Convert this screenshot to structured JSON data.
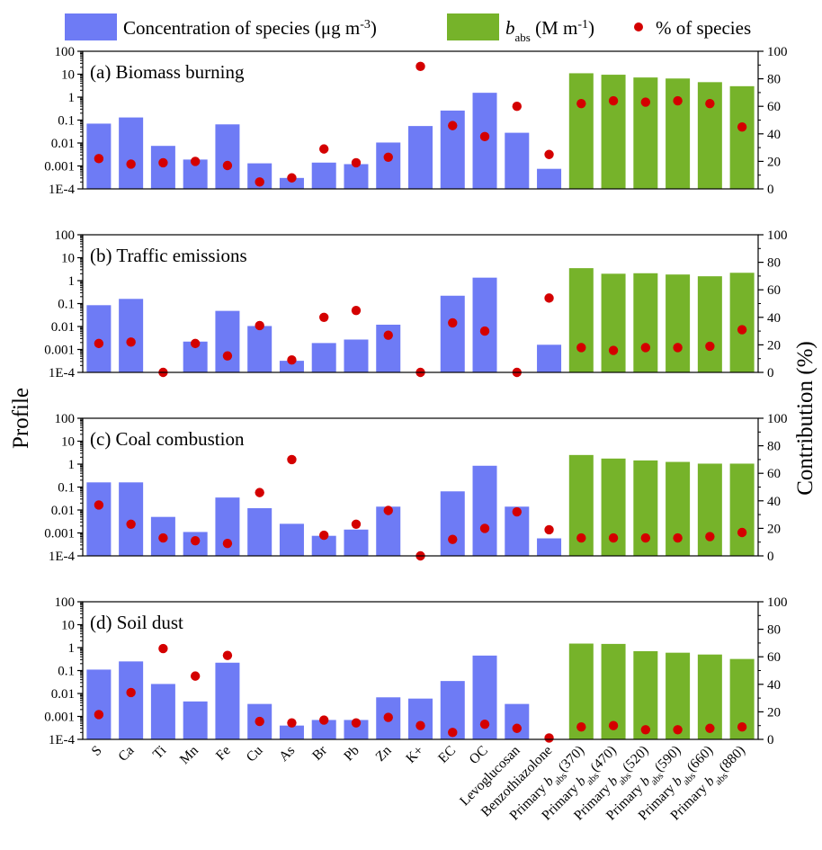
{
  "chart_data": {
    "type": "bar",
    "categories": [
      "S",
      "Ca",
      "Ti",
      "Mn",
      "Fe",
      "Cu",
      "As",
      "Br",
      "Pb",
      "Zn",
      "K+",
      "EC",
      "OC",
      "Levoglucosan",
      "Benzothiazolone",
      "Primary b_abs(370)",
      "Primary b_abs(470)",
      "Primary b_abs(520)",
      "Primary b_abs(590)",
      "Primary b_abs(660)",
      "Primary b_abs(880)"
    ],
    "category_labels": [
      {
        "main": "S",
        "sub": "",
        "tail": ""
      },
      {
        "main": "Ca",
        "sub": "",
        "tail": ""
      },
      {
        "main": "Ti",
        "sub": "",
        "tail": ""
      },
      {
        "main": "Mn",
        "sub": "",
        "tail": ""
      },
      {
        "main": "Fe",
        "sub": "",
        "tail": ""
      },
      {
        "main": "Cu",
        "sub": "",
        "tail": ""
      },
      {
        "main": "As",
        "sub": "",
        "tail": ""
      },
      {
        "main": "Br",
        "sub": "",
        "tail": ""
      },
      {
        "main": "Pb",
        "sub": "",
        "tail": ""
      },
      {
        "main": "Zn",
        "sub": "",
        "tail": ""
      },
      {
        "main": "K+",
        "sub": "",
        "tail": ""
      },
      {
        "main": "EC",
        "sub": "",
        "tail": ""
      },
      {
        "main": "OC",
        "sub": "",
        "tail": ""
      },
      {
        "main": "Levoglucosan",
        "sub": "",
        "tail": ""
      },
      {
        "main": "Benzothiazolone",
        "sub": "",
        "tail": ""
      },
      {
        "main": "Primary b",
        "sub": "abs",
        "tail": "(370)"
      },
      {
        "main": "Primary b",
        "sub": "abs",
        "tail": "(470)"
      },
      {
        "main": "Primary b",
        "sub": "abs",
        "tail": "(520)"
      },
      {
        "main": "Primary b",
        "sub": "abs",
        "tail": "(590)"
      },
      {
        "main": "Primary b",
        "sub": "abs",
        "tail": "(660)"
      },
      {
        "main": "Primary b",
        "sub": "abs",
        "tail": "(880)"
      }
    ],
    "species_count": 15,
    "legend": {
      "position": "top",
      "concentration": {
        "main": "Concentration of species (μg m",
        "sup": "-3",
        "tail": ")"
      },
      "babs": {
        "b": "b",
        "sub": "abs",
        "tail": " (M m",
        "sup": "-1",
        "tail2": ")"
      },
      "percent": "% of species"
    },
    "left_axis": {
      "title": "Profile",
      "scale": "log",
      "range": [
        0.0001,
        100
      ],
      "ticks": [
        0.0001,
        0.001,
        0.01,
        0.1,
        1,
        10,
        100
      ],
      "tick_labels": [
        "1E-4",
        "0.001",
        "0.01",
        "0.1",
        "1",
        "10",
        "100"
      ]
    },
    "right_axis": {
      "title": "Contribution (%)",
      "scale": "linear",
      "range": [
        0,
        100
      ],
      "ticks": [
        0,
        20,
        40,
        60,
        80,
        100
      ],
      "tick_labels": [
        "0",
        "20",
        "40",
        "60",
        "80",
        "100"
      ]
    },
    "colors": {
      "species_bar": "#6e7bf5",
      "babs_bar": "#76b32a",
      "percent_dot": "#d40000"
    },
    "panels": [
      {
        "title": "(a) Biomass burning",
        "bars": [
          0.07,
          0.13,
          0.0075,
          0.0019,
          0.065,
          0.0013,
          0.0003,
          0.0014,
          0.0012,
          0.0105,
          0.055,
          0.26,
          1.55,
          0.028,
          0.00075,
          11,
          9.5,
          7.2,
          6.5,
          4.5,
          3.0
        ],
        "percent": [
          22,
          18,
          19,
          20,
          17,
          5,
          8,
          29,
          19,
          23,
          89,
          46,
          38,
          60,
          25,
          62,
          64,
          63,
          64,
          62,
          45
        ]
      },
      {
        "title": "(b) Traffic emissions",
        "bars": [
          0.085,
          0.16,
          null,
          0.0022,
          0.048,
          0.0105,
          0.00032,
          0.0019,
          0.0027,
          0.012,
          null,
          0.22,
          1.35,
          null,
          0.0016,
          3.5,
          2.0,
          2.1,
          1.85,
          1.55,
          2.2
        ],
        "percent": [
          21,
          22,
          0,
          21,
          12,
          34,
          9,
          40,
          45,
          27,
          0,
          36,
          30,
          0,
          54,
          18,
          16,
          18,
          18,
          19,
          31
        ]
      },
      {
        "title": "(c) Coal combustion",
        "bars": [
          0.16,
          0.16,
          0.005,
          0.0011,
          0.035,
          0.012,
          0.0025,
          0.00075,
          0.0014,
          0.014,
          null,
          0.065,
          0.85,
          0.014,
          0.00058,
          2.5,
          1.75,
          1.45,
          1.25,
          1.05,
          1.05
        ],
        "percent": [
          37,
          23,
          13,
          11,
          9,
          46,
          70,
          15,
          23,
          33,
          0,
          12,
          20,
          32,
          19,
          13,
          13,
          13,
          13,
          14,
          17
        ]
      },
      {
        "title": "(d) Soil dust",
        "bars": [
          0.11,
          0.25,
          0.026,
          0.0045,
          0.22,
          0.0035,
          0.0004,
          0.0007,
          0.0007,
          0.0068,
          0.006,
          0.035,
          0.45,
          0.0035,
          null,
          1.5,
          1.45,
          0.7,
          0.6,
          0.5,
          0.32
        ],
        "percent": [
          18,
          34,
          66,
          46,
          61,
          13,
          12,
          14,
          12,
          16,
          10,
          5,
          11,
          8,
          1,
          9,
          10,
          7,
          7,
          8,
          9
        ]
      }
    ]
  }
}
